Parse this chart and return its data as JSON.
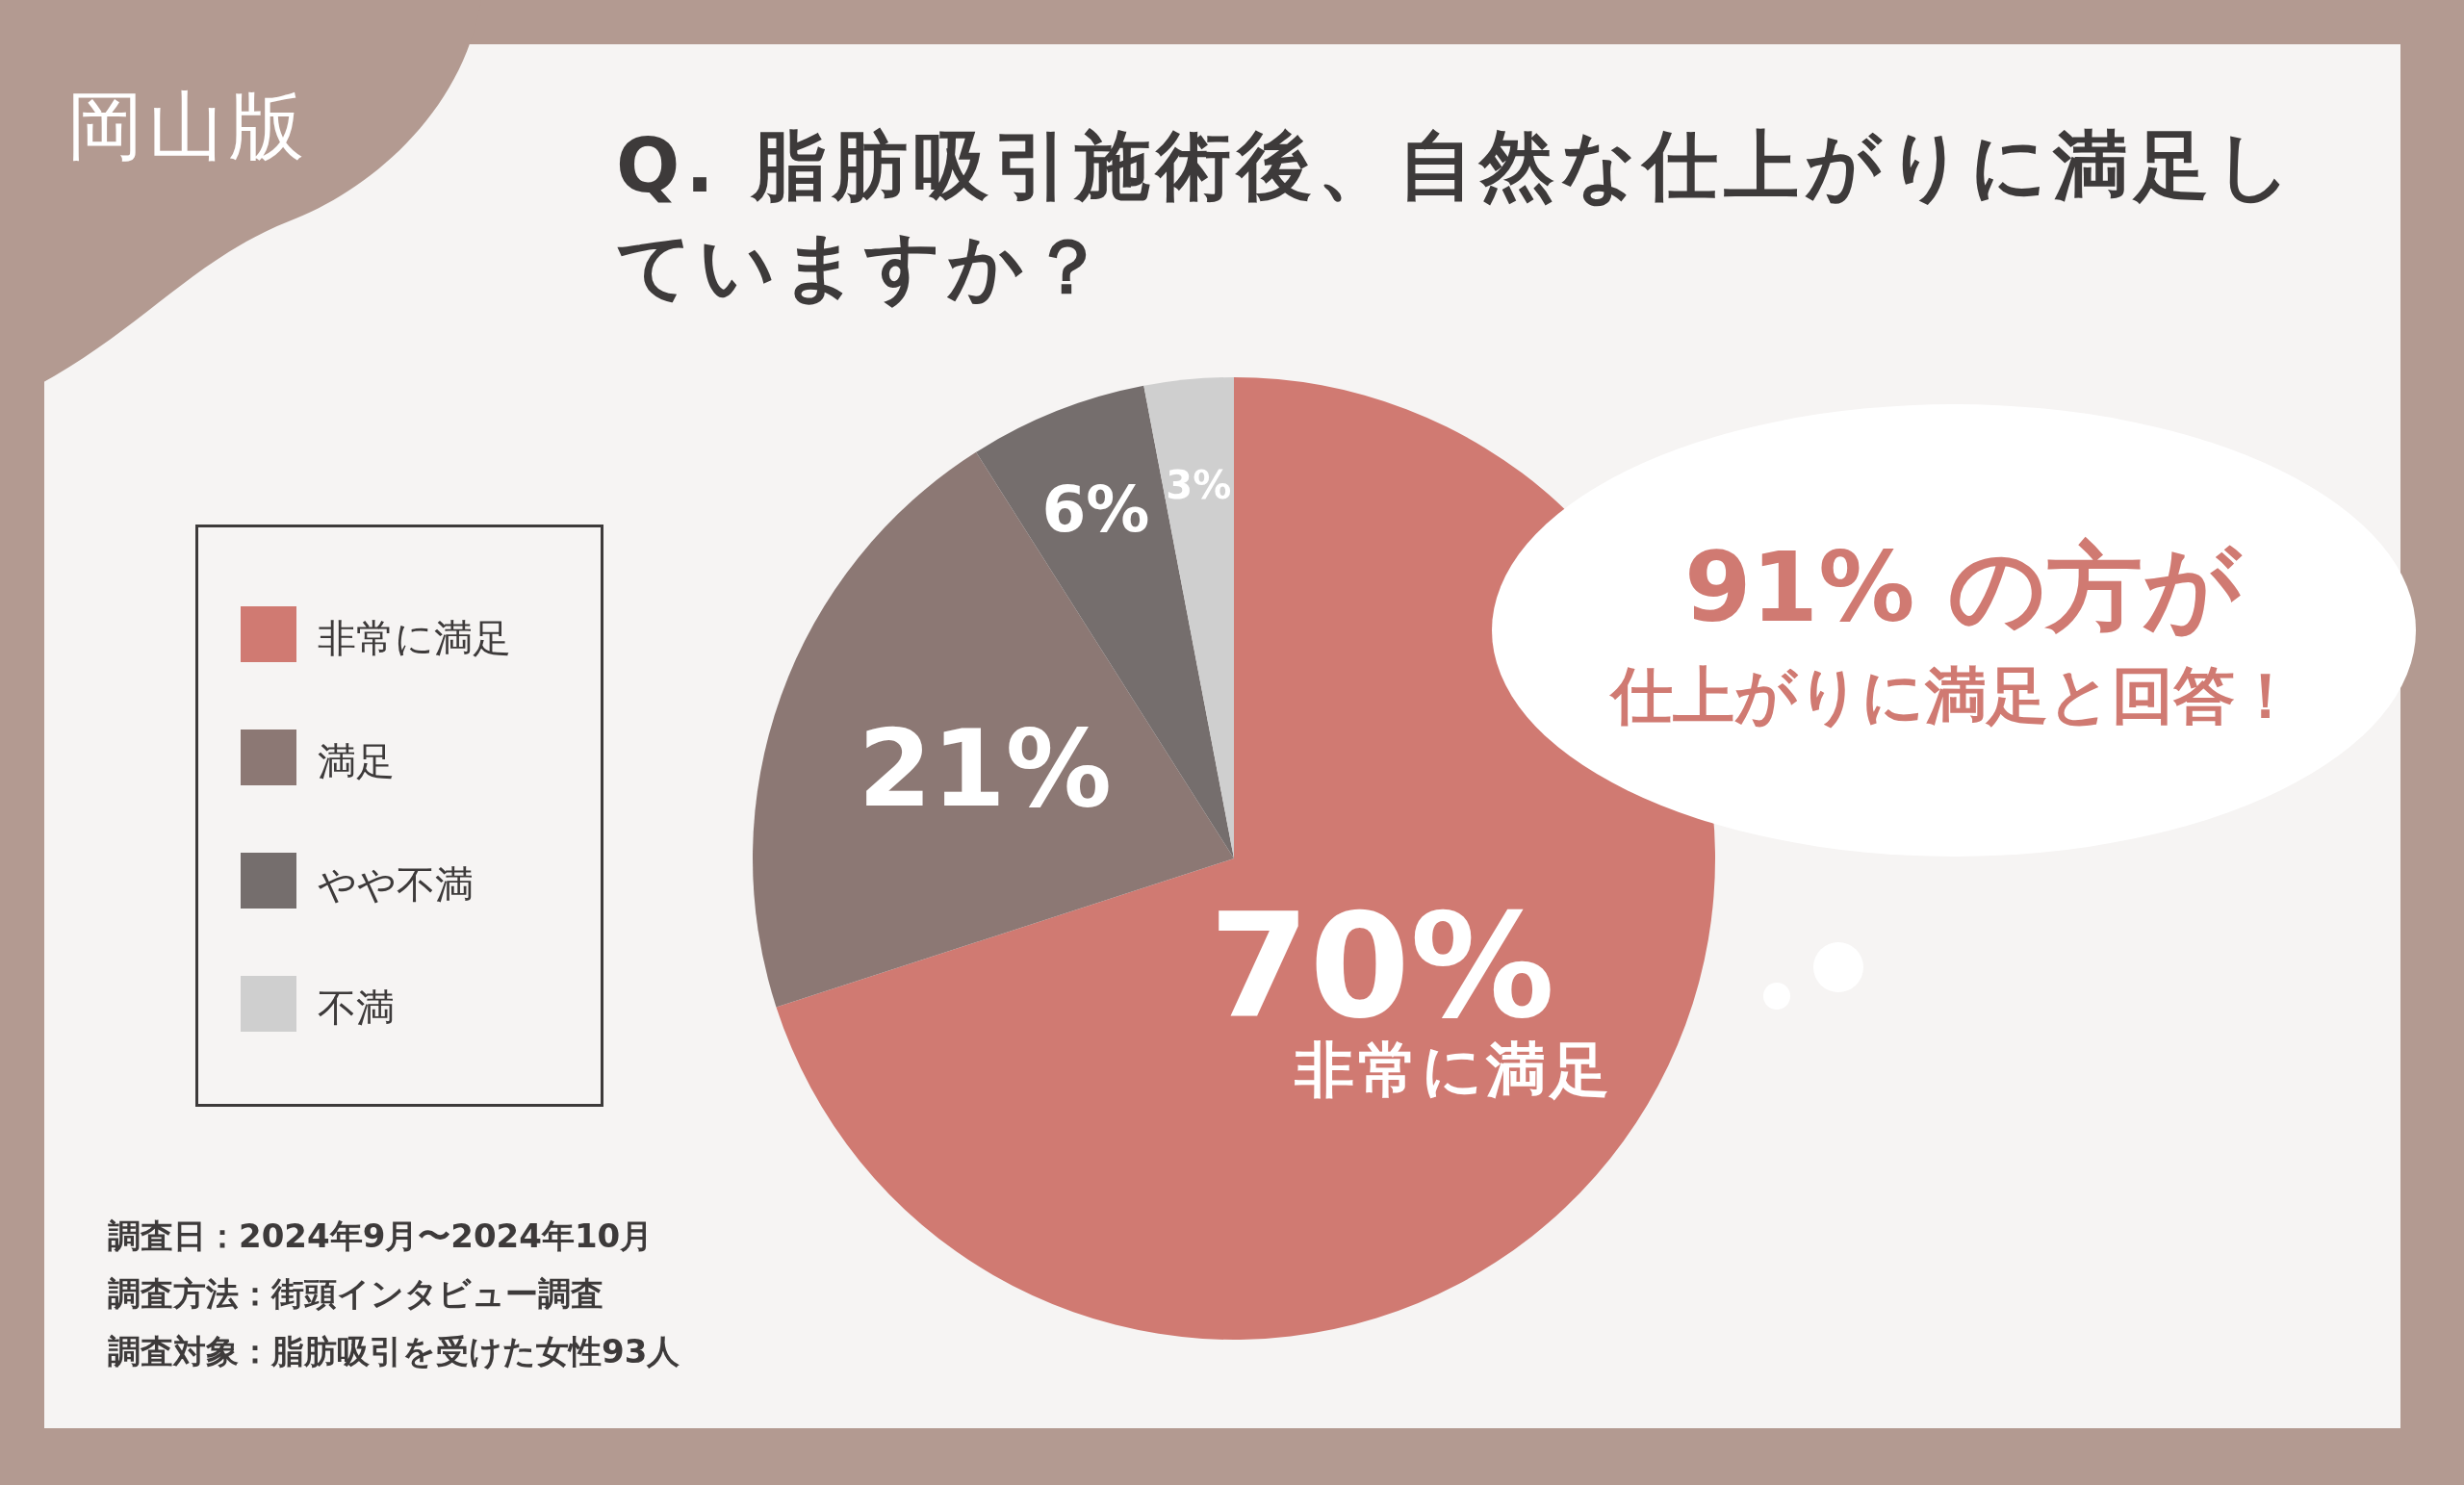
{
  "chart_data": {
    "type": "pie",
    "title": "Q. 脂肪吸引施術後、自然な仕上がりに満足していますか？",
    "categories": [
      "非常に満足",
      "満足",
      "やや不満",
      "不満"
    ],
    "values": [
      70,
      21,
      6,
      3
    ],
    "value_labels": [
      "70%",
      "21%",
      "6%",
      "3%"
    ],
    "colors": [
      "#d07a72",
      "#8c7874",
      "#756e6d",
      "#cfcfcf"
    ],
    "legend": "left",
    "annotations": [
      "岡山版",
      "91% の方が",
      "仕上がりに満足と回答！",
      "非常に満足",
      "調査日：2024年9月〜2024年10月",
      "調査方法：街頭インタビュー調査",
      "調査対象：脂肪吸引を受けた女性93人"
    ]
  }
}
